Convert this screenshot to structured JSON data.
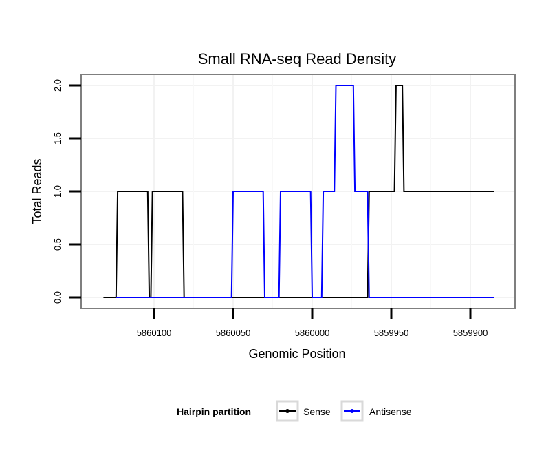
{
  "chart_data": {
    "type": "line",
    "title": "Small RNA-seq Read Density",
    "xlabel": "Genomic Position",
    "ylabel": "Total Reads",
    "xlim": [
      5860135,
      5859880
    ],
    "ylim": [
      0,
      2
    ],
    "x_ticks": [
      5860100,
      5860050,
      5860000,
      5859950,
      5859900
    ],
    "x_tick_labels": [
      "5860100",
      "5860050",
      "5860000",
      "5859950",
      "5859900"
    ],
    "y_ticks": [
      0,
      0.5,
      1,
      1.5,
      2
    ],
    "y_tick_labels": [
      "0.0",
      "0.5",
      "1.0",
      "1.5",
      "2.0"
    ],
    "grid": true,
    "legend": {
      "title": "Hairpin partition",
      "position": "bottom",
      "entries": [
        "Sense",
        "Antisense"
      ]
    },
    "series": [
      {
        "name": "Sense",
        "color": "#000000",
        "x": [
          5860132,
          5860124,
          5860123,
          5860104,
          5860103,
          5860102,
          5860101,
          5860082,
          5860081,
          5859965,
          5859964,
          5859948,
          5859947,
          5859946,
          5859943,
          5859942,
          5859920,
          5859885
        ],
        "y": [
          0,
          0,
          1,
          1,
          0,
          0,
          1,
          1,
          0,
          0,
          1,
          1,
          2,
          2,
          2,
          1,
          1,
          1
        ]
      },
      {
        "name": "Antisense",
        "color": "#0000ff",
        "x": [
          5860124,
          5860051,
          5860050,
          5860031,
          5860030,
          5860021,
          5860020,
          5860001,
          5860000,
          5859994,
          5859993,
          5859986,
          5859985,
          5859974,
          5859973,
          5859965,
          5859964,
          5859885
        ],
        "y": [
          0,
          0,
          1,
          1,
          0,
          0,
          1,
          1,
          0,
          0,
          1,
          1,
          2,
          2,
          1,
          1,
          0,
          0
        ]
      }
    ]
  }
}
